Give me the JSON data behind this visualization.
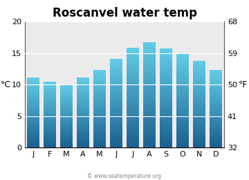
{
  "title": "Roscanvel water temp",
  "months": [
    "J",
    "F",
    "M",
    "A",
    "M",
    "J",
    "J",
    "A",
    "S",
    "O",
    "N",
    "D"
  ],
  "values_c": [
    11.0,
    10.4,
    10.0,
    11.0,
    12.3,
    14.0,
    15.8,
    16.7,
    15.7,
    14.8,
    13.7,
    12.3
  ],
  "ylim_c": [
    0,
    20
  ],
  "yticks_c": [
    0,
    5,
    10,
    15,
    20
  ],
  "yticks_f": [
    32,
    41,
    50,
    59,
    68
  ],
  "ylabel_left": "°C",
  "ylabel_right": "°F",
  "bar_color_top": "#62cce8",
  "bar_color_bottom": "#1a6090",
  "bg_color": "#ebebeb",
  "fig_bg": "#ffffff",
  "title_fontsize": 12,
  "tick_fontsize": 8,
  "label_fontsize": 9,
  "watermark": "© www.seatemperature.org"
}
